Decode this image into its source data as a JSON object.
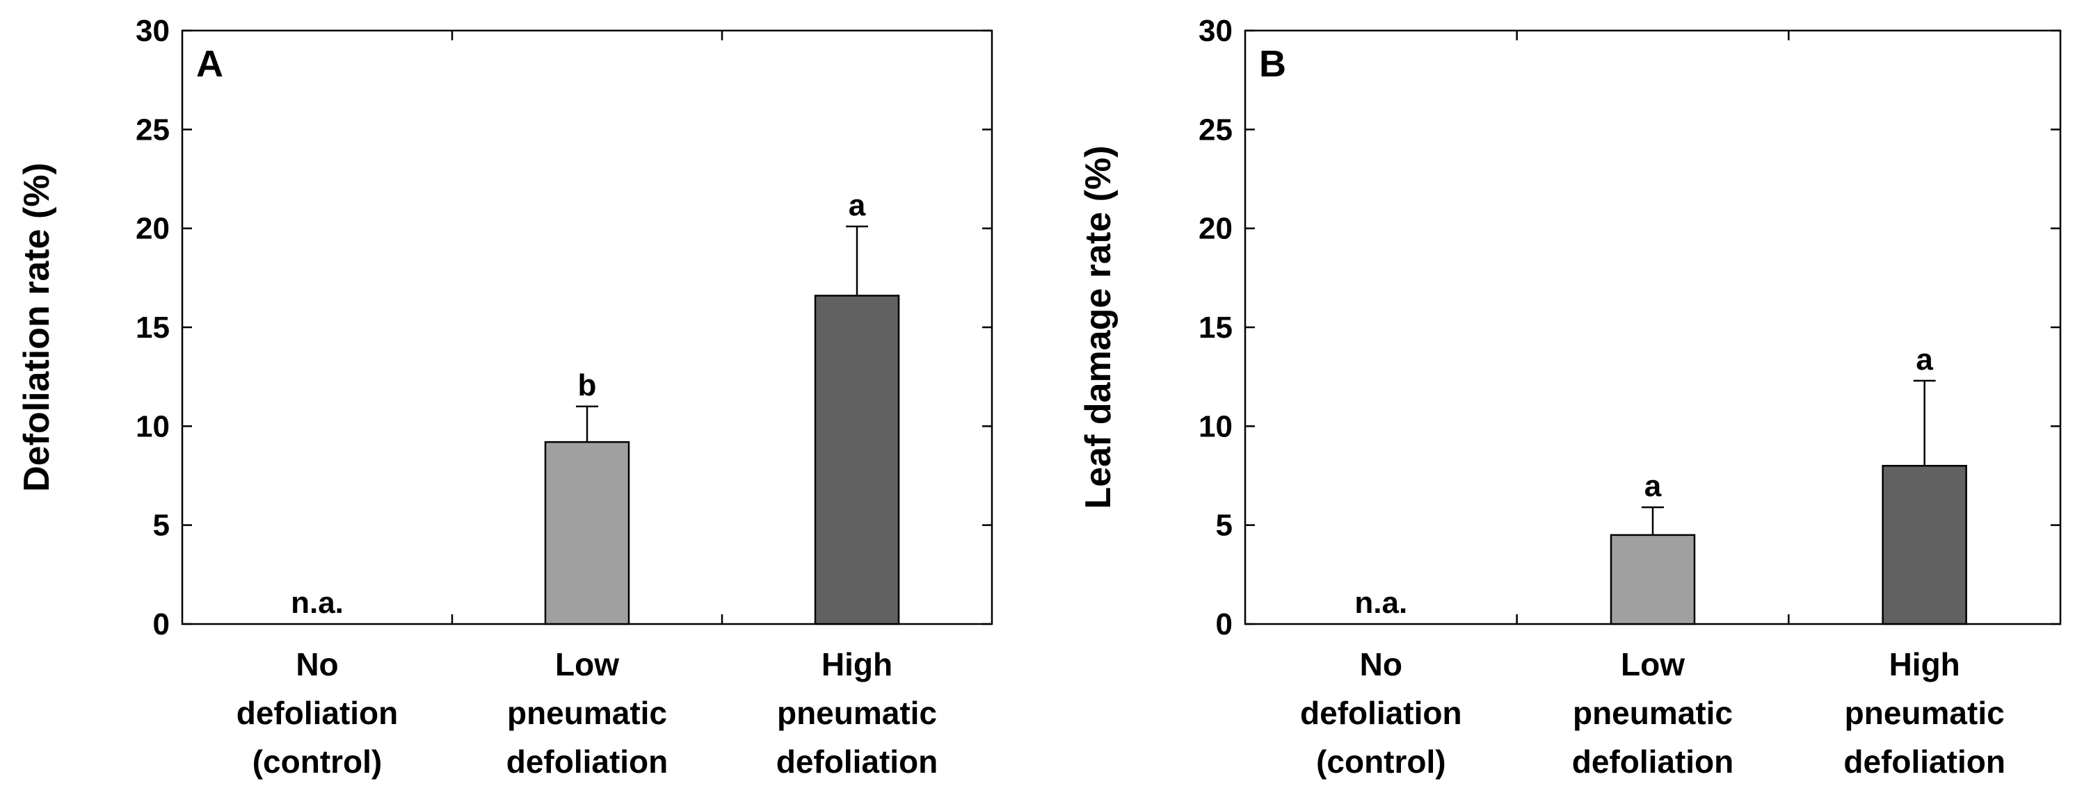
{
  "chart_data": [
    {
      "type": "bar",
      "panel": "A",
      "title": "",
      "xlabel": "",
      "ylabel": "Defoliation rate (%)",
      "ylim": [
        0,
        30
      ],
      "yticks": [
        0,
        5,
        10,
        15,
        20,
        25,
        30
      ],
      "categories": [
        [
          "No",
          "defoliation",
          "(control)"
        ],
        [
          "Low",
          "pneumatic",
          "defoliation"
        ],
        [
          "High",
          "pneumatic",
          "defoliation"
        ]
      ],
      "values": [
        null,
        9.2,
        16.6
      ],
      "errors": [
        null,
        1.8,
        3.5
      ],
      "bar_colors": [
        "#ffffff",
        "#a0a0a0",
        "#616161"
      ],
      "annotations": [
        "n.a.",
        "b",
        "a"
      ]
    },
    {
      "type": "bar",
      "panel": "B",
      "title": "",
      "xlabel": "",
      "ylabel": "Leaf damage rate (%)",
      "ylim": [
        0,
        30
      ],
      "yticks": [
        0,
        5,
        10,
        15,
        20,
        25,
        30
      ],
      "categories": [
        [
          "No",
          "defoliation",
          "(control)"
        ],
        [
          "Low",
          "pneumatic",
          "defoliation"
        ],
        [
          "High",
          "pneumatic",
          "defoliation"
        ]
      ],
      "values": [
        null,
        4.5,
        8.0
      ],
      "errors": [
        null,
        1.4,
        4.3
      ],
      "bar_colors": [
        "#ffffff",
        "#a0a0a0",
        "#616161"
      ],
      "annotations": [
        "n.a.",
        "a",
        "a"
      ]
    }
  ]
}
